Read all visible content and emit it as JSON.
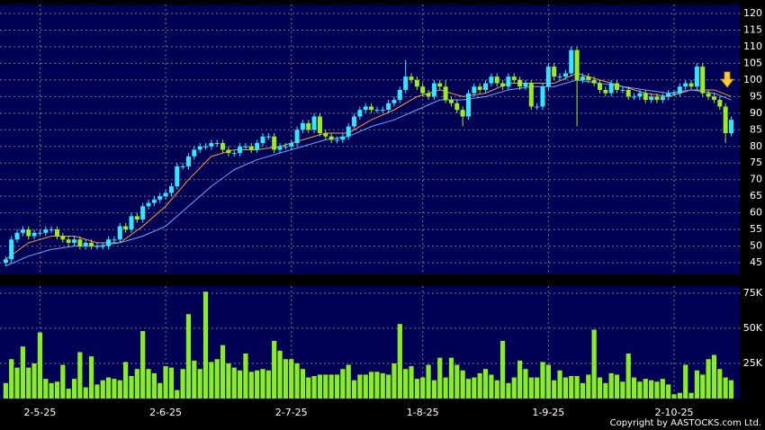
{
  "chart_data": [
    {
      "type": "candlestick",
      "up_color": "#33e6ff",
      "down_color": "#99ee22",
      "background": "#000055",
      "grid": true,
      "open": [
        45,
        46,
        52,
        54,
        55,
        53,
        54,
        54,
        55,
        55,
        53,
        52,
        51,
        52,
        50,
        51,
        50,
        50,
        50,
        52,
        52,
        56,
        55,
        59,
        58,
        62,
        63,
        64,
        65,
        66,
        68,
        74,
        74,
        77,
        79,
        80,
        80,
        81,
        81,
        79,
        78,
        78,
        80,
        80,
        79,
        81,
        83,
        83,
        79,
        80,
        80,
        81,
        85,
        87,
        85,
        89,
        84,
        83,
        82,
        82,
        83,
        86,
        89,
        91,
        92,
        91,
        91,
        91,
        93,
        94,
        97,
        101,
        100,
        98,
        96,
        95,
        99,
        98,
        94,
        93,
        91,
        89,
        96,
        98,
        97,
        99,
        101,
        99,
        98,
        101,
        100,
        98,
        99,
        92,
        92,
        98,
        104,
        101,
        101,
        102,
        109,
        100,
        101,
        100,
        99,
        97,
        96,
        99,
        97,
        97,
        95,
        95,
        96,
        94,
        95,
        94,
        95,
        96,
        96,
        98,
        99,
        98,
        104,
        96,
        95,
        94,
        92,
        84
      ],
      "high": [
        47,
        53,
        55,
        56,
        56,
        55,
        55,
        56,
        56,
        56,
        54,
        53,
        53,
        53,
        52,
        52,
        51,
        51,
        53,
        53,
        57,
        57,
        60,
        60,
        63,
        64,
        65,
        66,
        67,
        69,
        75,
        75,
        78,
        80,
        81,
        81,
        82,
        82,
        82,
        80,
        79,
        81,
        81,
        81,
        82,
        84,
        84,
        84,
        81,
        81,
        82,
        86,
        88,
        88,
        90,
        90,
        85,
        84,
        83,
        84,
        87,
        90,
        92,
        93,
        93,
        92,
        92,
        94,
        95,
        98,
        106,
        102,
        101,
        99,
        97,
        100,
        100,
        100,
        95,
        94,
        92,
        97,
        99,
        99,
        100,
        102,
        102,
        100,
        102,
        102,
        101,
        100,
        100,
        93,
        99,
        105,
        105,
        102,
        103,
        110,
        110,
        102,
        102,
        101,
        100,
        98,
        100,
        100,
        98,
        98,
        96,
        97,
        97,
        96,
        96,
        96,
        97,
        97,
        99,
        100,
        100,
        105,
        105,
        97,
        96,
        95,
        93,
        89
      ],
      "low": [
        44,
        45,
        51,
        53,
        52,
        52,
        53,
        53,
        54,
        52,
        51,
        50,
        50,
        49,
        49,
        49,
        49,
        49,
        49,
        51,
        51,
        54,
        54,
        57,
        57,
        61,
        62,
        63,
        64,
        65,
        67,
        73,
        73,
        76,
        78,
        79,
        79,
        80,
        78,
        77,
        77,
        77,
        79,
        78,
        78,
        80,
        82,
        78,
        78,
        79,
        79,
        80,
        84,
        84,
        84,
        83,
        82,
        81,
        81,
        81,
        82,
        85,
        88,
        90,
        90,
        90,
        90,
        90,
        92,
        93,
        96,
        99,
        97,
        95,
        94,
        94,
        97,
        93,
        92,
        90,
        86,
        88,
        95,
        96,
        96,
        98,
        98,
        97,
        97,
        99,
        97,
        97,
        91,
        91,
        91,
        97,
        100,
        100,
        100,
        101,
        86,
        99,
        99,
        98,
        96,
        95,
        95,
        96,
        96,
        94,
        94,
        94,
        93,
        93,
        93,
        93,
        94,
        95,
        95,
        97,
        97,
        97,
        95,
        94,
        93,
        91,
        81,
        83
      ],
      "close": [
        46,
        52,
        54,
        55,
        53,
        54,
        54,
        55,
        55,
        53,
        52,
        51,
        52,
        50,
        51,
        50,
        50,
        50,
        52,
        52,
        56,
        55,
        59,
        58,
        62,
        63,
        64,
        65,
        66,
        68,
        74,
        74,
        77,
        79,
        80,
        80,
        81,
        81,
        79,
        78,
        78,
        80,
        80,
        79,
        81,
        83,
        83,
        79,
        80,
        80,
        81,
        85,
        87,
        85,
        89,
        84,
        83,
        82,
        82,
        83,
        86,
        89,
        91,
        92,
        91,
        91,
        91,
        93,
        94,
        97,
        101,
        100,
        98,
        96,
        95,
        99,
        98,
        94,
        93,
        91,
        89,
        96,
        98,
        97,
        99,
        101,
        99,
        98,
        101,
        100,
        98,
        99,
        92,
        92,
        98,
        104,
        101,
        101,
        102,
        109,
        100,
        101,
        100,
        99,
        97,
        96,
        99,
        97,
        97,
        95,
        95,
        96,
        94,
        95,
        94,
        95,
        96,
        96,
        98,
        99,
        98,
        104,
        96,
        95,
        94,
        92,
        84,
        88
      ],
      "lines": [
        {
          "color": "#ff9933",
          "x": [
            0,
            4,
            8,
            12,
            16,
            20,
            24,
            28,
            32,
            36,
            40,
            44,
            48,
            52,
            56,
            60,
            64,
            68,
            72,
            76,
            80,
            84,
            88,
            92,
            96,
            100,
            104,
            108,
            112,
            116,
            120,
            124,
            127
          ],
          "values": [
            46,
            51,
            53,
            53,
            51,
            51,
            56,
            62,
            70,
            77,
            79,
            79,
            80,
            82,
            84,
            84,
            88,
            91,
            95,
            97,
            95,
            96,
            99,
            99,
            99,
            102,
            100,
            98,
            96,
            95,
            97,
            97,
            95
          ]
        },
        {
          "color": "#66aaff",
          "x": [
            0,
            4,
            8,
            12,
            16,
            20,
            24,
            28,
            32,
            36,
            40,
            44,
            48,
            52,
            56,
            60,
            64,
            68,
            72,
            76,
            80,
            84,
            88,
            92,
            96,
            100,
            104,
            108,
            112,
            116,
            120,
            124,
            127
          ],
          "values": [
            44,
            47,
            49,
            50,
            50,
            51,
            53,
            56,
            62,
            68,
            73,
            76,
            78,
            80,
            82,
            83,
            86,
            88,
            91,
            94,
            94,
            95,
            97,
            98,
            98,
            100,
            99,
            98,
            97,
            96,
            97,
            96,
            94
          ]
        }
      ],
      "ylim": [
        41.5,
        122.7
      ],
      "yticks": [
        45,
        50,
        55,
        60,
        65,
        70,
        75,
        80,
        85,
        90,
        95,
        100,
        105,
        110,
        115,
        120
      ]
    },
    {
      "type": "bar",
      "color": "#88ee22",
      "background": "#000055",
      "grid": true,
      "values": [
        11,
        28,
        22,
        37,
        22,
        25,
        47,
        14,
        11,
        12,
        24,
        7,
        14,
        33,
        8,
        30,
        10,
        13,
        15,
        14,
        13,
        26,
        16,
        21,
        48,
        21,
        18,
        11,
        23,
        22,
        6,
        21,
        60,
        27,
        21,
        76,
        26,
        28,
        38,
        25,
        22,
        20,
        32,
        19,
        20,
        21,
        20,
        41,
        34,
        28,
        28,
        25,
        21,
        15,
        16,
        17,
        17,
        17,
        17,
        21,
        24,
        13,
        17,
        17,
        19,
        19,
        18,
        17,
        25,
        53,
        21,
        23,
        14,
        15,
        24,
        13,
        29,
        15,
        29,
        24,
        20,
        14,
        15,
        18,
        21,
        17,
        13,
        41,
        11,
        15,
        27,
        21,
        15,
        15,
        26,
        24,
        13,
        20,
        15,
        16,
        16,
        11,
        17,
        49,
        15,
        11,
        18,
        17,
        12,
        32,
        15,
        12,
        14,
        13,
        12,
        14,
        10,
        3,
        4,
        24,
        4,
        20,
        17,
        28,
        31,
        21,
        15,
        13
      ],
      "ylim": [
        0,
        80
      ],
      "yticks": [
        {
          "value": 25,
          "label": "25K"
        },
        {
          "value": 50,
          "label": "50K"
        },
        {
          "value": 75,
          "label": "75K"
        }
      ],
      "xlim": [
        -1,
        128.5
      ],
      "xticks": [
        {
          "value": 6,
          "label": "2-5-25"
        },
        {
          "value": 28,
          "label": "2-6-25"
        },
        {
          "value": 50,
          "label": "2-7-25"
        },
        {
          "value": 73,
          "label": "1-8-25"
        },
        {
          "value": 95,
          "label": "1-9-25"
        },
        {
          "value": 117,
          "label": "2-10-25"
        }
      ]
    }
  ],
  "copyright": "Copyright by AASTOCKS.com Ltd."
}
